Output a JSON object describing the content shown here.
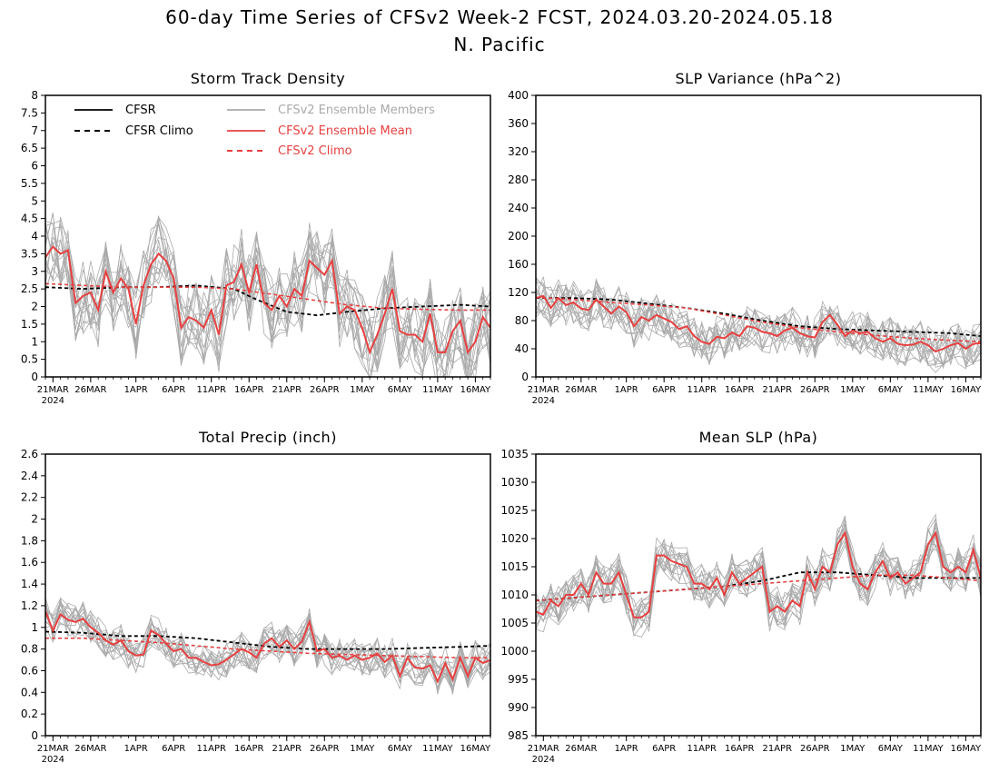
{
  "figure": {
    "title": "60-day Time Series of CFSv2 Week-2 FCST, 2024.03.20-2024.05.18",
    "subtitle": "N. Pacific"
  },
  "legend": {
    "items": [
      {
        "label": "CFSR",
        "color": "#000000",
        "dash": false
      },
      {
        "label": "CFSR Climo",
        "color": "#000000",
        "dash": true
      },
      {
        "label": "CFSv2 Ensemble Members",
        "color": "#aaaaaa",
        "dash": false
      },
      {
        "label": "CFSv2 Ensemble Mean",
        "color": "#e84040",
        "dash": false
      },
      {
        "label": "CFSv2 Climo",
        "color": "#e84040",
        "dash": true
      }
    ]
  },
  "colors": {
    "cfsr": "#000000",
    "members": "#aaaaaa",
    "mean": "#e84040",
    "climo": "#e84040"
  },
  "x_axis": {
    "ticks": [
      "21MAR",
      "26MAR",
      "1APR",
      "6APR",
      "11APR",
      "16APR",
      "21APR",
      "26APR",
      "1MAY",
      "6MAY",
      "11MAY",
      "16MAY"
    ],
    "tick_days": [
      1,
      6,
      12,
      17,
      22,
      27,
      32,
      37,
      42,
      47,
      52,
      57
    ],
    "year_label": "2024",
    "xlim": [
      0,
      59
    ]
  },
  "chart_data": [
    {
      "type": "line",
      "title": "Storm Track Density",
      "ylim": [
        0,
        8
      ],
      "yticks": [
        "0",
        "0.5",
        "1",
        "1.5",
        "2",
        "2.5",
        "3",
        "3.5",
        "4",
        "4.5",
        "5",
        "5.5",
        "6",
        "6.5",
        "7",
        "7.5",
        "8"
      ],
      "grid": false,
      "legend_position": "top-left",
      "member_count": 16,
      "member_spread": 1.1,
      "series": [
        {
          "name": "CFSv2 Ensemble Mean",
          "x": [
            0,
            1,
            2,
            3,
            4,
            5,
            6,
            7,
            8,
            9,
            10,
            11,
            12,
            13,
            14,
            15,
            16,
            17,
            18,
            19,
            20,
            21,
            22,
            23,
            24,
            25,
            26,
            27,
            28,
            29,
            30,
            31,
            32,
            33,
            34,
            35,
            36,
            37,
            38,
            39,
            40,
            41,
            42,
            43,
            44,
            45,
            46,
            47,
            48,
            49,
            50,
            51,
            52,
            53,
            54,
            55,
            56,
            57,
            58,
            59
          ],
          "values": [
            3.4,
            3.7,
            3.5,
            3.6,
            2.1,
            2.3,
            2.4,
            1.9,
            3.0,
            2.4,
            2.8,
            2.5,
            1.5,
            2.6,
            3.2,
            3.5,
            3.3,
            2.8,
            1.4,
            1.7,
            1.6,
            1.4,
            1.9,
            1.2,
            2.6,
            2.7,
            3.2,
            2.4,
            3.2,
            2.1,
            1.9,
            2.3,
            2.0,
            2.5,
            2.3,
            3.3,
            3.1,
            2.9,
            3.3,
            1.8,
            2.0,
            1.9,
            1.4,
            0.7,
            1.2,
            1.8,
            2.5,
            1.3,
            1.2,
            1.2,
            1.0,
            1.8,
            0.7,
            0.7,
            1.3,
            1.6,
            0.7,
            1.0,
            1.7,
            1.4
          ]
        },
        {
          "name": "CFSv2 Climo",
          "x": [
            0,
            5,
            10,
            15,
            20,
            25,
            30,
            35,
            40,
            45,
            50,
            55,
            59
          ],
          "values": [
            2.65,
            2.6,
            2.55,
            2.55,
            2.55,
            2.5,
            2.35,
            2.2,
            2.05,
            1.95,
            1.92,
            1.9,
            1.9
          ]
        },
        {
          "name": "CFSR Climo",
          "x": [
            0,
            5,
            10,
            15,
            20,
            25,
            28,
            32,
            36,
            40,
            45,
            50,
            55,
            59
          ],
          "values": [
            2.55,
            2.5,
            2.55,
            2.55,
            2.6,
            2.5,
            2.2,
            1.85,
            1.75,
            1.85,
            1.95,
            2.0,
            2.05,
            2.0
          ]
        }
      ]
    },
    {
      "type": "line",
      "title": "SLP Variance (hPa^2)",
      "ylim": [
        0,
        400
      ],
      "yticks": [
        "0",
        "40",
        "80",
        "120",
        "160",
        "200",
        "240",
        "280",
        "320",
        "360",
        "400"
      ],
      "grid": false,
      "member_count": 16,
      "member_spread": 30,
      "series": [
        {
          "name": "CFSv2 Ensemble Mean",
          "x": [
            0,
            1,
            2,
            3,
            4,
            5,
            6,
            7,
            8,
            9,
            10,
            11,
            12,
            13,
            14,
            15,
            16,
            17,
            18,
            19,
            20,
            21,
            22,
            23,
            24,
            25,
            26,
            27,
            28,
            29,
            30,
            31,
            32,
            33,
            34,
            35,
            36,
            37,
            38,
            39,
            40,
            41,
            42,
            43,
            44,
            45,
            46,
            47,
            48,
            49,
            50,
            51,
            52,
            53,
            54,
            55,
            56,
            57,
            58,
            59
          ],
          "values": [
            112,
            115,
            98,
            112,
            102,
            106,
            97,
            95,
            110,
            100,
            90,
            100,
            92,
            72,
            85,
            80,
            88,
            83,
            78,
            68,
            72,
            58,
            50,
            47,
            57,
            55,
            63,
            58,
            72,
            70,
            64,
            62,
            58,
            66,
            70,
            62,
            58,
            56,
            78,
            88,
            74,
            58,
            66,
            62,
            64,
            55,
            50,
            55,
            47,
            45,
            46,
            50,
            45,
            36,
            40,
            45,
            48,
            40,
            47,
            48
          ]
        },
        {
          "name": "CFSv2 Climo",
          "x": [
            0,
            5,
            10,
            15,
            20,
            25,
            30,
            35,
            40,
            45,
            50,
            55,
            59
          ],
          "values": [
            113,
            110,
            106,
            102,
            98,
            88,
            78,
            70,
            64,
            59,
            55,
            52,
            50
          ]
        },
        {
          "name": "CFSR Climo",
          "x": [
            0,
            5,
            10,
            15,
            20,
            25,
            30,
            35,
            40,
            45,
            50,
            55,
            59
          ],
          "values": [
            112,
            112,
            110,
            104,
            98,
            90,
            80,
            72,
            68,
            66,
            64,
            62,
            58
          ]
        }
      ]
    },
    {
      "type": "line",
      "title": "Total Precip (inch)",
      "ylim": [
        0,
        2.6
      ],
      "yticks": [
        "0",
        "0.2",
        "0.4",
        "0.6",
        "0.8",
        "1",
        "1.2",
        "1.4",
        "1.6",
        "1.8",
        "2",
        "2.2",
        "2.4",
        "2.6"
      ],
      "grid": false,
      "member_count": 16,
      "member_spread": 0.16,
      "series": [
        {
          "name": "CFSv2 Ensemble Mean",
          "x": [
            0,
            1,
            2,
            3,
            4,
            5,
            6,
            7,
            8,
            9,
            10,
            11,
            12,
            13,
            14,
            15,
            16,
            17,
            18,
            19,
            20,
            21,
            22,
            23,
            24,
            25,
            26,
            27,
            28,
            29,
            30,
            31,
            32,
            33,
            34,
            35,
            36,
            37,
            38,
            39,
            40,
            41,
            42,
            43,
            44,
            45,
            46,
            47,
            48,
            49,
            50,
            51,
            52,
            53,
            54,
            55,
            56,
            57,
            58,
            59
          ],
          "values": [
            1.15,
            0.97,
            1.12,
            1.07,
            1.05,
            1.08,
            1.0,
            0.95,
            0.88,
            0.84,
            0.88,
            0.78,
            0.74,
            0.75,
            0.97,
            0.93,
            0.85,
            0.78,
            0.8,
            0.72,
            0.72,
            0.68,
            0.65,
            0.66,
            0.7,
            0.75,
            0.8,
            0.77,
            0.72,
            0.85,
            0.9,
            0.82,
            0.88,
            0.8,
            0.87,
            1.05,
            0.78,
            0.8,
            0.72,
            0.74,
            0.7,
            0.74,
            0.7,
            0.72,
            0.76,
            0.68,
            0.74,
            0.55,
            0.72,
            0.63,
            0.62,
            0.65,
            0.5,
            0.67,
            0.52,
            0.72,
            0.55,
            0.72,
            0.67,
            0.7
          ]
        },
        {
          "name": "CFSv2 Climo",
          "x": [
            0,
            5,
            10,
            15,
            20,
            25,
            30,
            35,
            40,
            45,
            50,
            55,
            59
          ],
          "values": [
            0.9,
            0.9,
            0.88,
            0.86,
            0.83,
            0.8,
            0.78,
            0.76,
            0.75,
            0.74,
            0.73,
            0.72,
            0.72
          ]
        },
        {
          "name": "CFSR Climo",
          "x": [
            0,
            5,
            10,
            15,
            20,
            25,
            30,
            35,
            40,
            45,
            50,
            55,
            59
          ],
          "values": [
            0.96,
            0.95,
            0.92,
            0.92,
            0.9,
            0.86,
            0.82,
            0.8,
            0.8,
            0.8,
            0.81,
            0.82,
            0.83
          ]
        }
      ]
    },
    {
      "type": "line",
      "title": "Mean SLP (hPa)",
      "ylim": [
        985,
        1035
      ],
      "yticks": [
        "985",
        "990",
        "995",
        "1000",
        "1005",
        "1010",
        "1015",
        "1020",
        "1025",
        "1030",
        "1035"
      ],
      "grid": false,
      "member_count": 16,
      "member_spread": 3.5,
      "series": [
        {
          "name": "CFSv2 Ensemble Mean",
          "x": [
            0,
            1,
            2,
            3,
            4,
            5,
            6,
            7,
            8,
            9,
            10,
            11,
            12,
            13,
            14,
            15,
            16,
            17,
            18,
            19,
            20,
            21,
            22,
            23,
            24,
            25,
            26,
            27,
            28,
            29,
            30,
            31,
            32,
            33,
            34,
            35,
            36,
            37,
            38,
            39,
            40,
            41,
            42,
            43,
            44,
            45,
            46,
            47,
            48,
            49,
            50,
            51,
            52,
            53,
            54,
            55,
            56,
            57,
            58,
            59
          ],
          "values": [
            1007,
            1006.5,
            1009,
            1008,
            1010,
            1010,
            1012,
            1010,
            1014,
            1012,
            1012,
            1014,
            1010,
            1006,
            1006,
            1007,
            1017,
            1017,
            1016,
            1015.5,
            1015,
            1012,
            1012,
            1011,
            1013,
            1010,
            1014,
            1012,
            1013,
            1014,
            1015,
            1007,
            1008,
            1007,
            1009,
            1008,
            1014,
            1011,
            1015,
            1014,
            1019,
            1021,
            1015,
            1012,
            1011,
            1014,
            1016,
            1013,
            1014,
            1012,
            1013,
            1014,
            1019,
            1021,
            1015,
            1014,
            1015,
            1014,
            1018,
            1013
          ]
        },
        {
          "name": "CFSv2 Climo",
          "x": [
            0,
            5,
            10,
            15,
            20,
            25,
            30,
            35,
            40,
            45,
            50,
            55,
            59
          ],
          "values": [
            1009,
            1009.5,
            1010,
            1010.5,
            1011,
            1011.5,
            1012,
            1012.5,
            1013,
            1013.5,
            1013.5,
            1013,
            1012.5
          ]
        },
        {
          "name": "CFSR Climo",
          "x": [
            0,
            5,
            10,
            15,
            20,
            25,
            30,
            35,
            38,
            40,
            45,
            50,
            55,
            59
          ],
          "values": [
            1009,
            1009.5,
            1010,
            1010.5,
            1011,
            1011.5,
            1012.5,
            1014,
            1014,
            1014,
            1013.5,
            1013,
            1013,
            1013
          ]
        }
      ]
    }
  ]
}
